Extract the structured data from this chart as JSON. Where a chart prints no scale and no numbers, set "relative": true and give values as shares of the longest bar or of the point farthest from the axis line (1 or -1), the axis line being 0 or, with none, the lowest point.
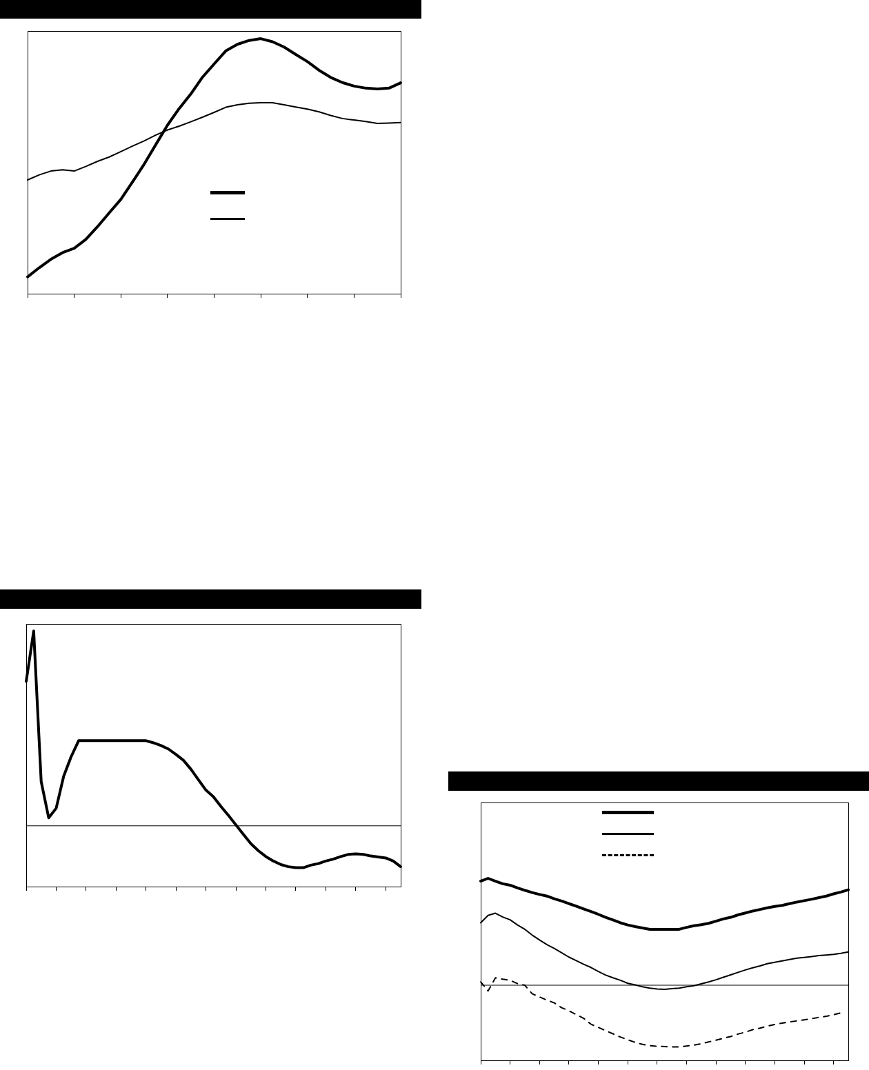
{
  "chart_data": [
    {
      "type": "line",
      "relative": true,
      "categories": [
        null,
        null,
        null,
        null,
        null,
        null,
        null,
        null,
        null,
        null,
        null,
        null,
        null,
        null,
        null,
        null,
        null,
        null,
        null,
        null,
        null,
        null,
        null,
        null,
        null,
        null,
        null,
        null,
        null,
        null,
        null,
        null,
        null
      ],
      "series": [
        {
          "color": "#000000",
          "values": [
            0.066,
            0.102,
            0.135,
            0.161,
            0.178,
            0.213,
            0.263,
            0.317,
            0.37,
            0.438,
            0.508,
            0.585,
            0.661,
            0.726,
            0.783,
            0.849,
            0.901,
            0.952,
            0.978,
            0.993,
            1,
            0.988,
            0.967,
            0.938,
            0.91,
            0.876,
            0.848,
            0.828,
            0.814,
            0.806,
            0.803,
            0.806,
            0.827
          ]
        },
        {
          "color": "#000000",
          "values": [
            0.446,
            0.466,
            0.481,
            0.486,
            0.481,
            0.499,
            0.519,
            0.536,
            0.557,
            0.579,
            0.599,
            0.622,
            0.642,
            0.657,
            0.674,
            0.692,
            0.711,
            0.731,
            0.741,
            0.747,
            0.749,
            0.749,
            0.741,
            0.732,
            0.724,
            0.713,
            0.699,
            0.687,
            0.681,
            0.675,
            0.668,
            0.669,
            0.671
          ]
        }
      ]
    },
    {
      "type": "line",
      "relative": true,
      "categories": [
        null,
        null,
        null,
        null,
        null,
        null,
        null,
        null,
        null,
        null,
        null,
        null,
        null,
        null,
        null,
        null,
        null,
        null,
        null,
        null,
        null,
        null,
        null,
        null,
        null,
        null,
        null,
        null,
        null,
        null,
        null,
        null,
        null,
        null,
        null,
        null,
        null,
        null,
        null,
        null,
        null,
        null,
        null,
        null,
        null,
        null,
        null,
        null,
        null,
        null,
        null
      ],
      "series": [
        {
          "color": "#000000",
          "values": [
            0.742,
            1,
            0.227,
            0.041,
            0.09,
            0.254,
            0.355,
            0.437,
            0.437,
            0.437,
            0.437,
            0.437,
            0.437,
            0.437,
            0.437,
            0.437,
            0.437,
            0.426,
            0.412,
            0.394,
            0.366,
            0.336,
            0.29,
            0.236,
            0.183,
            0.149,
            0.099,
            0.053,
            0.005,
            -0.044,
            -0.092,
            -0.128,
            -0.158,
            -0.181,
            -0.199,
            -0.21,
            -0.215,
            -0.215,
            -0.202,
            -0.194,
            -0.181,
            -0.171,
            -0.158,
            -0.147,
            -0.144,
            -0.147,
            -0.155,
            -0.16,
            -0.165,
            -0.181,
            -0.21
          ]
        }
      ]
    },
    {
      "type": "line",
      "relative": true,
      "categories": [
        null,
        null,
        null,
        null,
        null,
        null,
        null,
        null,
        null,
        null,
        null,
        null,
        null,
        null,
        null,
        null,
        null,
        null,
        null,
        null,
        null,
        null,
        null,
        null,
        null,
        null,
        null,
        null,
        null,
        null,
        null,
        null,
        null,
        null,
        null,
        null,
        null,
        null,
        null,
        null,
        null,
        null,
        null,
        null,
        null,
        null,
        null,
        null,
        null,
        null,
        null
      ],
      "series": [
        {
          "color": "#000000",
          "values": [
            0.974,
            1,
            0.974,
            0.949,
            0.936,
            0.911,
            0.888,
            0.867,
            0.849,
            0.834,
            0.809,
            0.788,
            0.763,
            0.74,
            0.714,
            0.689,
            0.663,
            0.635,
            0.61,
            0.584,
            0.564,
            0.548,
            0.536,
            0.523,
            0.523,
            0.523,
            0.523,
            0.523,
            0.541,
            0.556,
            0.566,
            0.579,
            0.599,
            0.62,
            0.635,
            0.658,
            0.676,
            0.694,
            0.709,
            0.724,
            0.737,
            0.747,
            0.763,
            0.778,
            0.791,
            0.804,
            0.819,
            0.834,
            0.855,
            0.872,
            0.893
          ]
        },
        {
          "color": "#000000",
          "values": [
            0.584,
            0.653,
            0.674,
            0.638,
            0.612,
            0.564,
            0.523,
            0.469,
            0.423,
            0.38,
            0.344,
            0.304,
            0.263,
            0.23,
            0.196,
            0.166,
            0.128,
            0.094,
            0.069,
            0.046,
            0.018,
            0.003,
            -0.015,
            -0.028,
            -0.036,
            -0.038,
            -0.033,
            -0.028,
            -0.015,
            -0.005,
            0.013,
            0.031,
            0.051,
            0.074,
            0.097,
            0.12,
            0.143,
            0.163,
            0.181,
            0.202,
            0.214,
            0.227,
            0.24,
            0.253,
            0.26,
            0.268,
            0.278,
            0.283,
            0.288,
            0.298,
            0.311
          ]
        },
        {
          "color": "#000000",
          "line_style": "dashed",
          "values": [
            0.031,
            -0.054,
            0.069,
            0.056,
            0.046,
            0.015,
            0,
            -0.08,
            -0.11,
            -0.14,
            -0.165,
            -0.21,
            -0.24,
            -0.275,
            -0.31,
            -0.365,
            -0.395,
            -0.425,
            -0.455,
            -0.485,
            -0.51,
            -0.535,
            -0.553,
            -0.566,
            -0.571,
            -0.574,
            -0.577,
            -0.577,
            -0.569,
            -0.561,
            -0.548,
            -0.531,
            -0.515,
            -0.497,
            -0.48,
            -0.457,
            -0.439,
            -0.416,
            -0.401,
            -0.383,
            -0.367,
            -0.355,
            -0.344,
            -0.334,
            -0.324,
            -0.314,
            -0.301,
            -0.291,
            -0.276,
            -0.258,
            null
          ]
        }
      ]
    }
  ]
}
